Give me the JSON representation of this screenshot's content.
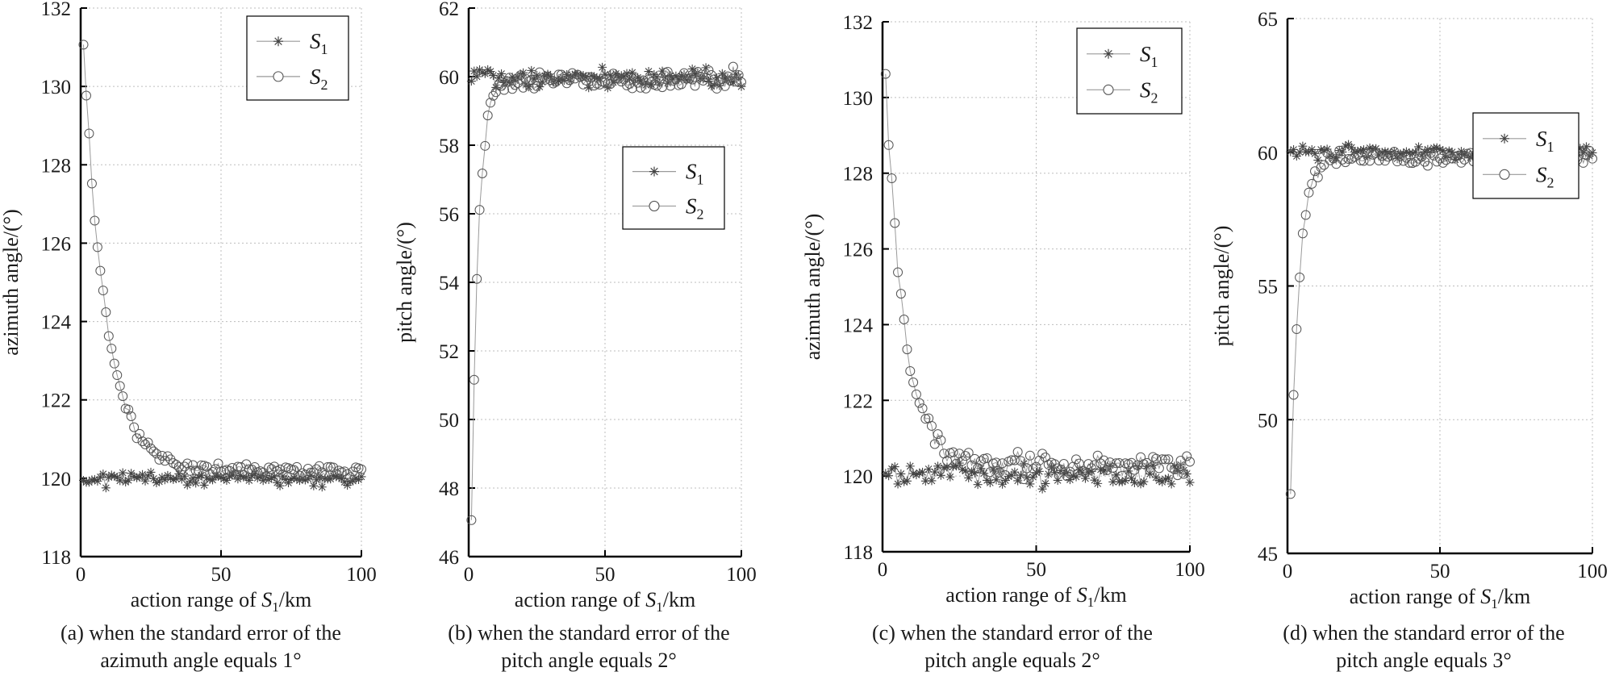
{
  "chart_data": [
    {
      "type": "scatter",
      "panel": "a",
      "xlabel": "action range of S1/km",
      "ylabel": "azimuth angle/(°)",
      "xlim": [
        0,
        100
      ],
      "ylim": [
        118,
        132
      ],
      "xticks": [
        "0",
        "50",
        "100"
      ],
      "yticks": [
        "118",
        "120",
        "122",
        "124",
        "126",
        "128",
        "130",
        "132"
      ],
      "grid": true,
      "legend": "top-right",
      "series": [
        {
          "name": "S1",
          "marker": "star",
          "base": 120,
          "noise": 0.12,
          "start": 120,
          "tau": 1,
          "points": 100
        },
        {
          "name": "S2",
          "marker": "circle",
          "base": 120.2,
          "noise": 0.12,
          "start": 131,
          "tau": 8,
          "points": 100
        }
      ],
      "caption": [
        "(a) when the standard error of the",
        "azimuth angle equals 1°"
      ]
    },
    {
      "type": "scatter",
      "panel": "b",
      "xlabel": "action range of S1/km",
      "ylabel": "pitch angle/(°)",
      "xlim": [
        0,
        100
      ],
      "ylim": [
        46,
        62
      ],
      "xticks": [
        "0",
        "50",
        "100"
      ],
      "yticks": [
        "46",
        "48",
        "50",
        "52",
        "54",
        "56",
        "58",
        "60",
        "62"
      ],
      "grid": true,
      "legend": "upper-right",
      "series": [
        {
          "name": "S1",
          "marker": "star",
          "base": 60,
          "noise": 0.2,
          "start": 60,
          "tau": 1,
          "points": 100
        },
        {
          "name": "S2",
          "marker": "circle",
          "base": 59.9,
          "noise": 0.2,
          "start": 47,
          "tau": 2.5,
          "points": 100
        }
      ],
      "caption": [
        "(b) when the standard error of the",
        "pitch angle equals 2°"
      ]
    },
    {
      "type": "scatter",
      "panel": "c",
      "xlabel": "action range of S1/km",
      "ylabel": "azimuth angle/(°)",
      "xlim": [
        0,
        100
      ],
      "ylim": [
        118,
        132
      ],
      "xticks": [
        "0",
        "50",
        "100"
      ],
      "yticks": [
        "118",
        "120",
        "122",
        "124",
        "126",
        "128",
        "130",
        "132"
      ],
      "grid": true,
      "legend": "top-right",
      "series": [
        {
          "name": "S1",
          "marker": "star",
          "base": 120,
          "noise": 0.22,
          "start": 120,
          "tau": 1,
          "points": 100
        },
        {
          "name": "S2",
          "marker": "circle",
          "base": 120.3,
          "noise": 0.22,
          "start": 130.6,
          "tau": 6,
          "points": 100
        }
      ],
      "caption": [
        "(c) when the standard error of the",
        "pitch angle equals 2°"
      ]
    },
    {
      "type": "scatter",
      "panel": "d",
      "xlabel": "action range of S1/km",
      "ylabel": "pitch angle/(°)",
      "xlim": [
        0,
        100
      ],
      "ylim": [
        45,
        65
      ],
      "xticks": [
        "0",
        "50",
        "100"
      ],
      "yticks": [
        "45",
        "50",
        "55",
        "60",
        "65"
      ],
      "grid": true,
      "legend": "upper-right",
      "series": [
        {
          "name": "S1",
          "marker": "star",
          "base": 60,
          "noise": 0.2,
          "start": 60,
          "tau": 1,
          "points": 100
        },
        {
          "name": "S2",
          "marker": "circle",
          "base": 59.8,
          "noise": 0.2,
          "start": 47,
          "tau": 2.8,
          "points": 100
        }
      ],
      "caption": [
        "(d) when the standard error of the",
        "pitch angle equals 3°"
      ]
    }
  ]
}
